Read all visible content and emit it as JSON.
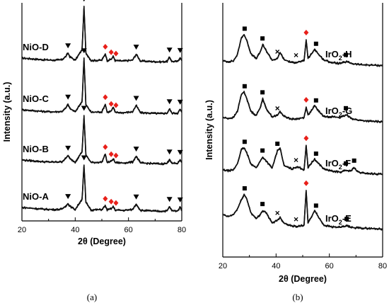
{
  "chart_data": [
    {
      "type": "line",
      "panel_label": "(a)",
      "xlabel": "2θ (Degree)",
      "ylabel": "Intensity (a.u.)",
      "xlim": [
        20,
        80
      ],
      "xticks": [
        "20",
        "40",
        "60",
        "80"
      ],
      "grid": false,
      "markers": {
        "triangle": {
          "symbol": "▼",
          "color": "#000000"
        },
        "diamond": {
          "symbol": "◆",
          "color": "#e8201a"
        }
      },
      "series": [
        {
          "name": "NiO-D",
          "x": [
            20,
            24,
            28,
            32,
            35,
            36.5,
            37.3,
            38,
            40,
            42.6,
            43.3,
            44,
            46,
            50,
            51.3,
            52,
            53.5,
            54.3,
            55,
            58,
            61.5,
            62.9,
            64.5,
            68,
            72,
            74.5,
            75.4,
            76.3,
            78.5,
            79.4,
            80
          ],
          "y": [
            0.0,
            -0.02,
            -0.04,
            -0.05,
            -0.04,
            0.04,
            0.12,
            0.03,
            -0.05,
            0.2,
            1.22,
            0.12,
            -0.06,
            -0.05,
            0.1,
            -0.06,
            -0.03,
            0.04,
            -0.06,
            -0.07,
            -0.05,
            0.09,
            -0.07,
            -0.08,
            -0.09,
            -0.08,
            0.02,
            -0.08,
            -0.08,
            0.01,
            -0.06
          ],
          "annotations": [
            {
              "x": 37.3,
              "marker": "triangle"
            },
            {
              "x": 43.3,
              "marker": "triangle"
            },
            {
              "x": 51.3,
              "marker": "diamond"
            },
            {
              "x": 53.5,
              "marker": "diamond"
            },
            {
              "x": 55.3,
              "marker": "diamond"
            },
            {
              "x": 62.9,
              "marker": "triangle"
            },
            {
              "x": 75.4,
              "marker": "triangle"
            },
            {
              "x": 79.4,
              "marker": "triangle"
            }
          ]
        },
        {
          "name": "NiO-C",
          "x": [
            20,
            24,
            28,
            32,
            35,
            36.5,
            37.3,
            38,
            40,
            42.6,
            43.3,
            44,
            46,
            50,
            51.3,
            52,
            53.5,
            54.3,
            55,
            58,
            61.5,
            62.9,
            64.5,
            68,
            72,
            74.5,
            75.4,
            76.3,
            78.5,
            79.4,
            80
          ],
          "y": [
            0.0,
            -0.02,
            -0.04,
            -0.05,
            -0.04,
            0.04,
            0.13,
            0.03,
            -0.05,
            0.2,
            1.22,
            0.12,
            -0.06,
            -0.05,
            0.13,
            -0.06,
            -0.03,
            0.06,
            -0.06,
            -0.07,
            -0.05,
            0.1,
            -0.07,
            -0.08,
            -0.09,
            -0.08,
            0.02,
            -0.08,
            -0.08,
            0.01,
            -0.06
          ],
          "annotations": [
            {
              "x": 37.3,
              "marker": "triangle"
            },
            {
              "x": 43.3,
              "marker": "triangle"
            },
            {
              "x": 51.3,
              "marker": "diamond"
            },
            {
              "x": 53.5,
              "marker": "diamond"
            },
            {
              "x": 55.3,
              "marker": "diamond"
            },
            {
              "x": 62.9,
              "marker": "triangle"
            },
            {
              "x": 75.4,
              "marker": "triangle"
            },
            {
              "x": 79.4,
              "marker": "triangle"
            }
          ]
        },
        {
          "name": "NiO-B",
          "x": [
            20,
            24,
            28,
            32,
            35,
            36.5,
            37.3,
            38,
            40,
            42.6,
            43.3,
            44,
            46,
            50,
            51.3,
            52,
            53.5,
            54.3,
            55,
            58,
            61.5,
            62.9,
            64.5,
            68,
            72,
            74.5,
            75.4,
            76.3,
            78.5,
            79.4,
            80
          ],
          "y": [
            0.0,
            -0.02,
            -0.04,
            -0.05,
            -0.04,
            0.04,
            0.11,
            0.03,
            -0.05,
            0.2,
            1.05,
            0.12,
            -0.06,
            -0.05,
            0.14,
            -0.06,
            -0.03,
            0.03,
            -0.06,
            -0.07,
            -0.05,
            0.09,
            -0.07,
            -0.08,
            -0.09,
            -0.08,
            0.02,
            -0.08,
            -0.08,
            0.01,
            -0.06
          ],
          "annotations": [
            {
              "x": 37.3,
              "marker": "triangle"
            },
            {
              "x": 43.3,
              "marker": "triangle"
            },
            {
              "x": 51.3,
              "marker": "diamond"
            },
            {
              "x": 53.5,
              "marker": "diamond"
            },
            {
              "x": 55.3,
              "marker": "diamond"
            },
            {
              "x": 62.9,
              "marker": "triangle"
            },
            {
              "x": 75.4,
              "marker": "triangle"
            },
            {
              "x": 79.4,
              "marker": "triangle"
            }
          ]
        },
        {
          "name": "NiO-A",
          "x": [
            20,
            24,
            28,
            32,
            35,
            36.5,
            37.3,
            38,
            40,
            42.6,
            43.3,
            44,
            46,
            50,
            51.3,
            52,
            53.5,
            54.3,
            55,
            58,
            61.5,
            62.9,
            64.5,
            68,
            72,
            74.5,
            75.4,
            76.3,
            78.5,
            79.4,
            80
          ],
          "y": [
            0.0,
            -0.02,
            -0.04,
            -0.05,
            -0.04,
            0.04,
            0.09,
            0.03,
            -0.05,
            0.2,
            1.0,
            0.12,
            -0.06,
            -0.05,
            0.04,
            -0.06,
            -0.03,
            0.02,
            -0.06,
            -0.07,
            -0.05,
            0.08,
            -0.07,
            -0.08,
            -0.09,
            -0.08,
            0.02,
            -0.08,
            -0.08,
            0.01,
            -0.06
          ],
          "annotations": [
            {
              "x": 37.3,
              "marker": "triangle"
            },
            {
              "x": 43.3,
              "marker": "triangle"
            },
            {
              "x": 51.3,
              "marker": "diamond"
            },
            {
              "x": 53.5,
              "marker": "diamond"
            },
            {
              "x": 55.3,
              "marker": "diamond"
            },
            {
              "x": 62.9,
              "marker": "triangle"
            },
            {
              "x": 75.4,
              "marker": "triangle"
            },
            {
              "x": 79.4,
              "marker": "triangle"
            }
          ]
        }
      ]
    },
    {
      "type": "line",
      "panel_label": "(b)",
      "xlabel": "2θ (Degree)",
      "ylabel": "Intensity (a.u.)",
      "xlim": [
        20,
        80
      ],
      "xticks": [
        "20",
        "40",
        "60",
        "80"
      ],
      "grid": false,
      "markers": {
        "square": {
          "symbol": "■",
          "color": "#000000"
        },
        "cross": {
          "symbol": "×",
          "color": "#000000"
        },
        "diamond": {
          "symbol": "◆",
          "color": "#e8201a"
        }
      },
      "series": [
        {
          "name": "IrO2-H",
          "x": [
            20,
            22,
            24,
            25.5,
            27,
            28,
            29,
            30.5,
            32.5,
            34,
            35,
            36.2,
            38.5,
            40.5,
            41.5,
            43,
            46,
            48,
            50.5,
            51.3,
            52,
            53.5,
            54.5,
            56,
            58,
            61,
            64,
            66.5,
            69,
            72,
            76,
            80
          ],
          "y": [
            0.0,
            -0.02,
            0.0,
            0.15,
            0.55,
            0.62,
            0.48,
            0.18,
            0.05,
            0.2,
            0.38,
            0.25,
            0.02,
            0.05,
            0.2,
            0.03,
            -0.04,
            -0.03,
            0.0,
            0.5,
            0.06,
            0.18,
            0.28,
            0.15,
            0.02,
            -0.04,
            -0.06,
            -0.02,
            -0.07,
            -0.09,
            -0.1,
            -0.11
          ],
          "annotations": [
            {
              "x": 28.2,
              "marker": "square"
            },
            {
              "x": 34.9,
              "marker": "square"
            },
            {
              "x": 40.5,
              "marker": "cross"
            },
            {
              "x": 47.5,
              "marker": "cross"
            },
            {
              "x": 51.3,
              "marker": "diamond"
            },
            {
              "x": 55.0,
              "marker": "square"
            },
            {
              "x": 66.2,
              "marker": "square"
            }
          ]
        },
        {
          "name": "IrO2-G",
          "x": [
            20,
            22,
            24,
            25.5,
            27,
            28,
            29,
            30.5,
            32.5,
            34,
            35,
            36.2,
            38.5,
            40.5,
            41.5,
            43,
            46,
            48,
            50.5,
            51.3,
            52,
            53.5,
            54.5,
            56,
            58,
            61,
            64,
            66.5,
            69,
            72,
            76,
            80
          ],
          "y": [
            0.0,
            -0.02,
            0.0,
            0.15,
            0.55,
            0.6,
            0.45,
            0.15,
            0.05,
            0.22,
            0.45,
            0.22,
            0.02,
            0.05,
            0.14,
            0.03,
            -0.04,
            -0.03,
            0.0,
            0.25,
            0.06,
            0.18,
            0.28,
            0.15,
            0.02,
            0.02,
            0.0,
            0.06,
            -0.04,
            -0.07,
            -0.09,
            -0.1
          ],
          "annotations": [
            {
              "x": 28.2,
              "marker": "square"
            },
            {
              "x": 34.9,
              "marker": "square"
            },
            {
              "x": 40.5,
              "marker": "cross"
            },
            {
              "x": 51.3,
              "marker": "diamond"
            },
            {
              "x": 55.0,
              "marker": "square"
            },
            {
              "x": 66.2,
              "marker": "square"
            }
          ]
        },
        {
          "name": "IrO2-F",
          "x": [
            20,
            22,
            24,
            25.5,
            27,
            28,
            29,
            30.5,
            32.5,
            34,
            35,
            36.2,
            38.5,
            40.5,
            41.5,
            43,
            46,
            48,
            50.5,
            51.3,
            52,
            53.5,
            54.5,
            56,
            58,
            61,
            64,
            66.5,
            68,
            69.2,
            70.5,
            72,
            76,
            80
          ],
          "y": [
            0.0,
            -0.02,
            0.0,
            0.15,
            0.48,
            0.52,
            0.4,
            0.15,
            0.05,
            0.2,
            0.3,
            0.22,
            0.04,
            0.45,
            0.52,
            0.1,
            0.02,
            0.08,
            0.0,
            0.58,
            0.06,
            0.18,
            0.25,
            0.15,
            0.02,
            -0.03,
            -0.05,
            -0.01,
            -0.03,
            0.06,
            -0.04,
            -0.07,
            -0.09,
            -0.1
          ],
          "annotations": [
            {
              "x": 28.2,
              "marker": "square"
            },
            {
              "x": 34.9,
              "marker": "square"
            },
            {
              "x": 40.5,
              "marker": "square"
            },
            {
              "x": 47.5,
              "marker": "cross"
            },
            {
              "x": 51.3,
              "marker": "diamond"
            },
            {
              "x": 55.0,
              "marker": "square"
            },
            {
              "x": 66.2,
              "marker": "square"
            },
            {
              "x": 69.3,
              "marker": "square"
            }
          ]
        },
        {
          "name": "IrO2-E",
          "x": [
            20,
            22,
            24,
            25.5,
            27,
            28,
            29,
            30.5,
            32.5,
            34,
            35,
            36.2,
            38.5,
            40.5,
            41.5,
            43,
            46,
            48,
            50.5,
            51.3,
            52,
            53.5,
            54.5,
            56,
            58,
            61,
            64,
            66.5,
            69,
            72,
            76,
            80
          ],
          "y": [
            0.25,
            0.2,
            0.25,
            0.38,
            0.6,
            0.72,
            0.62,
            0.3,
            0.15,
            0.25,
            0.34,
            0.3,
            0.05,
            0.12,
            0.18,
            0.05,
            -0.02,
            -0.03,
            0.0,
            0.82,
            0.05,
            0.22,
            0.35,
            0.18,
            0.0,
            -0.04,
            -0.05,
            -0.02,
            -0.06,
            -0.07,
            -0.08,
            -0.09
          ],
          "annotations": [
            {
              "x": 28.2,
              "marker": "square"
            },
            {
              "x": 34.9,
              "marker": "square"
            },
            {
              "x": 40.5,
              "marker": "cross"
            },
            {
              "x": 47.5,
              "marker": "cross"
            },
            {
              "x": 51.3,
              "marker": "diamond"
            },
            {
              "x": 55.0,
              "marker": "square"
            },
            {
              "x": 66.5,
              "marker": "square"
            }
          ]
        }
      ]
    }
  ]
}
